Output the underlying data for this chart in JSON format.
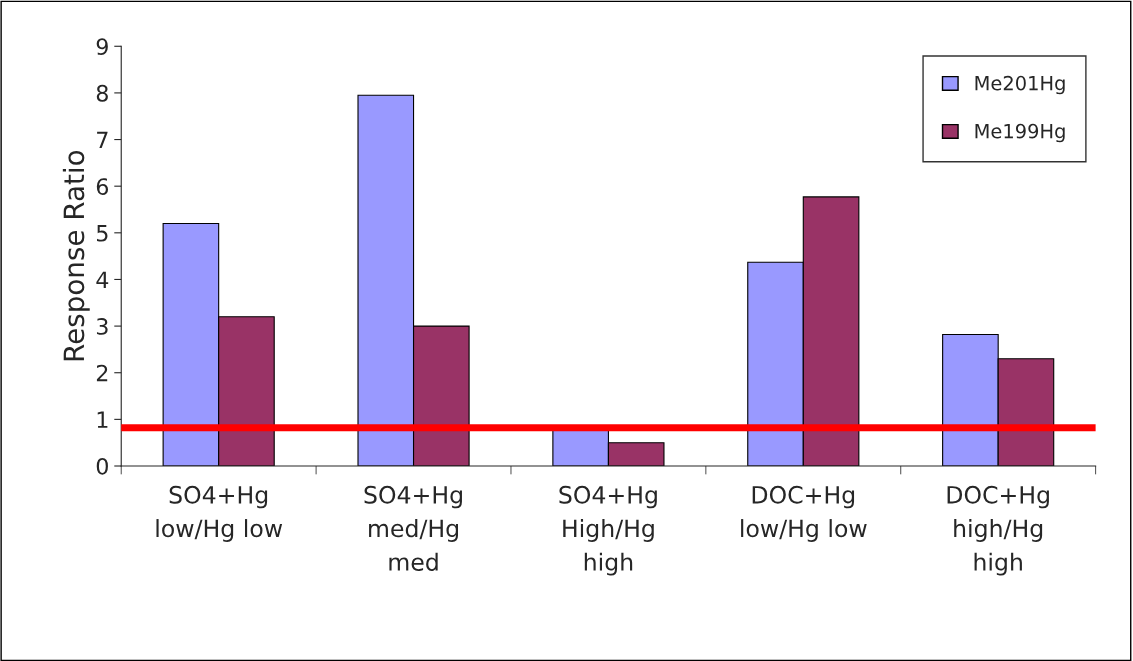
{
  "chart_data": {
    "type": "bar",
    "ylabel": "Response Ratio",
    "categories": [
      "SO4+Hg\nlow/Hg low",
      "SO4+Hg\nmed/Hg\nmed",
      "SO4+Hg\nHigh/Hg\nhigh",
      "DOC+Hg\nlow/Hg low",
      "DOC+Hg\nhigh/Hg\nhigh"
    ],
    "series": [
      {
        "name": "Me201Hg",
        "color": "#9999ff",
        "values": [
          5.2,
          7.95,
          0.8,
          4.37,
          2.82
        ]
      },
      {
        "name": "Me199Hg",
        "color": "#993366",
        "values": [
          3.2,
          3.0,
          0.5,
          5.77,
          2.3
        ]
      }
    ],
    "ylim": [
      0,
      9
    ],
    "yticks": [
      0,
      1,
      2,
      3,
      4,
      5,
      6,
      7,
      8,
      9
    ],
    "ref_lines": [
      {
        "axis": "y",
        "value": 0.82,
        "color": "#ff0000"
      }
    ],
    "grid": false,
    "legend": "top right"
  }
}
